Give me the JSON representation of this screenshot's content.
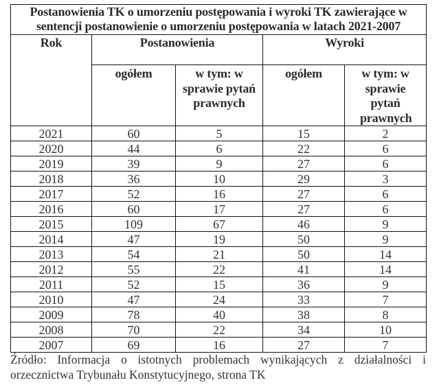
{
  "table": {
    "title": "Postanowienia TK o umorzeniu postępowania i wyroki TK zawierające w sentencji postanowienie o umorzeniu postępowania w latach 2021-2007",
    "headers": {
      "rok": "Rok",
      "postanowienia": "Postanowienia",
      "wyroki": "Wyroki",
      "ogolem_post": "ogółem",
      "wtym_post": "w tym: w sprawie pytań prawnych",
      "ogolem_wyr": "ogółem",
      "wtym_wyr": "w tym: w sprawie pytań prawnych"
    },
    "rows": [
      {
        "rok": "2021",
        "post_ogolem": "60",
        "post_pytania": "5",
        "wyr_ogolem": "15",
        "wyr_pytania": "2"
      },
      {
        "rok": "2020",
        "post_ogolem": "44",
        "post_pytania": "6",
        "wyr_ogolem": "22",
        "wyr_pytania": "6"
      },
      {
        "rok": "2019",
        "post_ogolem": "39",
        "post_pytania": "9",
        "wyr_ogolem": "27",
        "wyr_pytania": "6"
      },
      {
        "rok": "2018",
        "post_ogolem": "36",
        "post_pytania": "10",
        "wyr_ogolem": "29",
        "wyr_pytania": "3"
      },
      {
        "rok": "2017",
        "post_ogolem": "52",
        "post_pytania": "16",
        "wyr_ogolem": "27",
        "wyr_pytania": "6"
      },
      {
        "rok": "2016",
        "post_ogolem": "60",
        "post_pytania": "17",
        "wyr_ogolem": "27",
        "wyr_pytania": "6"
      },
      {
        "rok": "2015",
        "post_ogolem": "109",
        "post_pytania": "67",
        "wyr_ogolem": "46",
        "wyr_pytania": "9"
      },
      {
        "rok": "2014",
        "post_ogolem": "47",
        "post_pytania": "19",
        "wyr_ogolem": "50",
        "wyr_pytania": "9"
      },
      {
        "rok": "2013",
        "post_ogolem": "54",
        "post_pytania": "21",
        "wyr_ogolem": "50",
        "wyr_pytania": "14"
      },
      {
        "rok": "2012",
        "post_ogolem": "55",
        "post_pytania": "22",
        "wyr_ogolem": "41",
        "wyr_pytania": "14"
      },
      {
        "rok": "2011",
        "post_ogolem": "52",
        "post_pytania": "15",
        "wyr_ogolem": "36",
        "wyr_pytania": "9"
      },
      {
        "rok": "2010",
        "post_ogolem": "47",
        "post_pytania": "24",
        "wyr_ogolem": "33",
        "wyr_pytania": "7"
      },
      {
        "rok": "2009",
        "post_ogolem": "78",
        "post_pytania": "40",
        "wyr_ogolem": "38",
        "wyr_pytania": "8"
      },
      {
        "rok": "2008",
        "post_ogolem": "70",
        "post_pytania": "22",
        "wyr_ogolem": "34",
        "wyr_pytania": "10"
      },
      {
        "rok": "2007",
        "post_ogolem": "69",
        "post_pytania": "16",
        "wyr_ogolem": "27",
        "wyr_pytania": "7"
      }
    ]
  },
  "source": "Źródło: Informacja o istotnych problemach wynikających z działalności i orzecznictwa Trybunału Konstytucyjnego, strona TK"
}
